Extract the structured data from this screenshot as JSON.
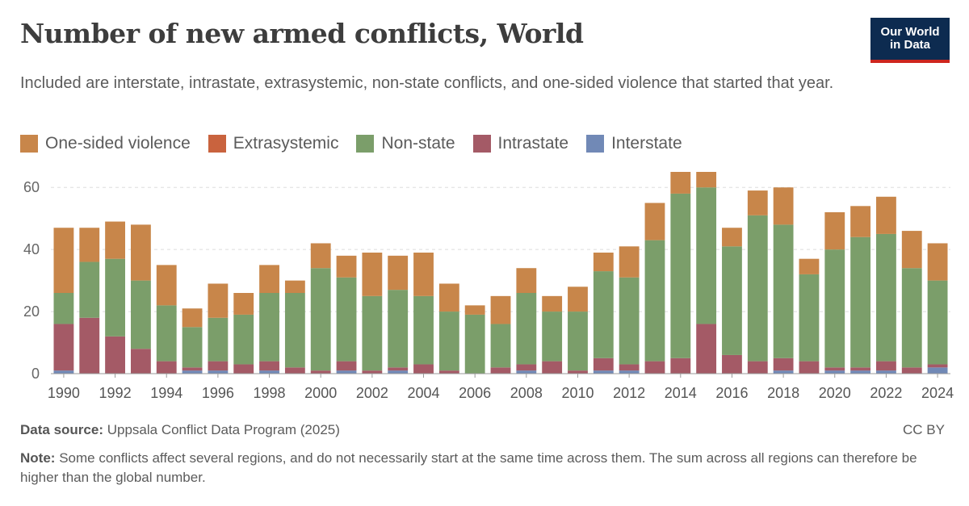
{
  "header": {
    "title": "Number of new armed conflicts, World",
    "subtitle": "Included are interstate, intrastate, extrasystemic, non-state conflicts, and one-sided violence that started that year.",
    "logo_line1": "Our World",
    "logo_line2": "in Data"
  },
  "footer": {
    "source_label": "Data source:",
    "source_text": "Uppsala Conflict Data Program (2025)",
    "license": "CC BY",
    "note_label": "Note:",
    "note_text": "Some conflicts affect several regions, and do not necessarily start at the same time across them. The sum across all regions can therefore be higher than the global number."
  },
  "colors": {
    "one_sided": "#c8864a",
    "extrasystemic": "#c9633e",
    "non_state": "#7b9e6a",
    "intrastate": "#a45a66",
    "interstate": "#7189b6"
  },
  "chart_data": {
    "type": "bar",
    "stacked": true,
    "legend_position": "top",
    "grid": "horizontal dashed",
    "ylim": [
      0,
      65
    ],
    "yticks": [
      0,
      20,
      40,
      60
    ],
    "x": [
      1990,
      1991,
      1992,
      1993,
      1994,
      1995,
      1996,
      1997,
      1998,
      1999,
      2000,
      2001,
      2002,
      2003,
      2004,
      2005,
      2006,
      2007,
      2008,
      2009,
      2010,
      2011,
      2012,
      2013,
      2014,
      2015,
      2016,
      2017,
      2018,
      2019,
      2020,
      2021,
      2022,
      2023,
      2024
    ],
    "xticks": [
      "1990",
      "1992",
      "1994",
      "1996",
      "1998",
      "2000",
      "2002",
      "2004",
      "2006",
      "2008",
      "2010",
      "2012",
      "2014",
      "2016",
      "2018",
      "2020",
      "2022",
      "2024"
    ],
    "series": [
      {
        "name": "Interstate",
        "color_key": "interstate",
        "values": [
          1,
          0,
          0,
          0,
          0,
          1,
          1,
          0,
          1,
          0,
          0,
          1,
          0,
          1,
          0,
          0,
          0,
          0,
          1,
          0,
          0,
          1,
          1,
          0,
          0,
          0,
          0,
          0,
          1,
          0,
          1,
          1,
          1,
          0,
          2
        ]
      },
      {
        "name": "Intrastate",
        "color_key": "intrastate",
        "values": [
          15,
          18,
          12,
          8,
          4,
          1,
          3,
          3,
          3,
          2,
          1,
          3,
          1,
          1,
          3,
          1,
          0,
          2,
          2,
          4,
          1,
          4,
          2,
          4,
          5,
          16,
          6,
          4,
          4,
          4,
          1,
          1,
          3,
          2,
          1
        ]
      },
      {
        "name": "Extrasystemic",
        "color_key": "extrasystemic",
        "values": [
          0,
          0,
          0,
          0,
          0,
          0,
          0,
          0,
          0,
          0,
          0,
          0,
          0,
          0,
          0,
          0,
          0,
          0,
          0,
          0,
          0,
          0,
          0,
          0,
          0,
          0,
          0,
          0,
          0,
          0,
          0,
          0,
          0,
          0,
          0
        ]
      },
      {
        "name": "Non-state",
        "color_key": "non_state",
        "values": [
          10,
          18,
          25,
          22,
          18,
          13,
          14,
          16,
          22,
          24,
          33,
          27,
          24,
          25,
          22,
          19,
          19,
          14,
          23,
          16,
          19,
          28,
          28,
          39,
          53,
          44,
          35,
          47,
          43,
          28,
          38,
          42,
          41,
          32,
          27
        ]
      },
      {
        "name": "One-sided violence",
        "color_key": "one_sided",
        "values": [
          21,
          11,
          12,
          18,
          13,
          6,
          11,
          7,
          9,
          4,
          8,
          7,
          14,
          11,
          14,
          9,
          3,
          9,
          8,
          5,
          8,
          6,
          10,
          12,
          7,
          5,
          6,
          8,
          12,
          5,
          12,
          10,
          12,
          12,
          12
        ]
      }
    ],
    "legend_order": [
      {
        "name": "One-sided violence",
        "color_key": "one_sided"
      },
      {
        "name": "Extrasystemic",
        "color_key": "extrasystemic"
      },
      {
        "name": "Non-state",
        "color_key": "non_state"
      },
      {
        "name": "Intrastate",
        "color_key": "intrastate"
      },
      {
        "name": "Interstate",
        "color_key": "interstate"
      }
    ]
  }
}
